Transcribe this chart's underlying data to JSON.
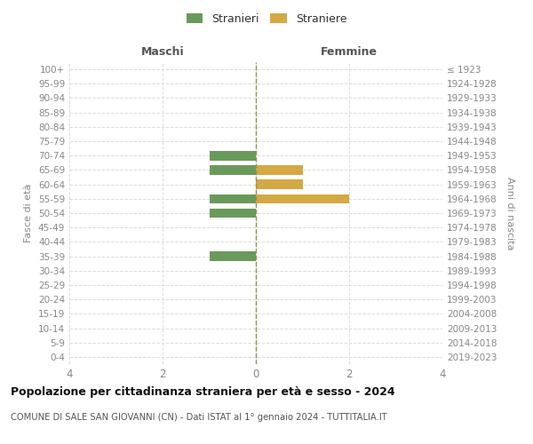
{
  "age_groups": [
    "100+",
    "95-99",
    "90-94",
    "85-89",
    "80-84",
    "75-79",
    "70-74",
    "65-69",
    "60-64",
    "55-59",
    "50-54",
    "45-49",
    "40-44",
    "35-39",
    "30-34",
    "25-29",
    "20-24",
    "15-19",
    "10-14",
    "5-9",
    "0-4"
  ],
  "birth_years": [
    "≤ 1923",
    "1924-1928",
    "1929-1933",
    "1934-1938",
    "1939-1943",
    "1944-1948",
    "1949-1953",
    "1954-1958",
    "1959-1963",
    "1964-1968",
    "1969-1973",
    "1974-1978",
    "1979-1983",
    "1984-1988",
    "1989-1993",
    "1994-1998",
    "1999-2003",
    "2004-2008",
    "2009-2013",
    "2014-2018",
    "2019-2023"
  ],
  "maschi": [
    0,
    0,
    0,
    0,
    0,
    0,
    1,
    1,
    0,
    1,
    1,
    0,
    0,
    1,
    0,
    0,
    0,
    0,
    0,
    0,
    0
  ],
  "femmine": [
    0,
    0,
    0,
    0,
    0,
    0,
    0,
    1,
    1,
    2,
    0,
    0,
    0,
    0,
    0,
    0,
    0,
    0,
    0,
    0,
    0
  ],
  "color_maschi": "#6a9a5b",
  "color_femmine": "#d4a843",
  "title": "Popolazione per cittadinanza straniera per età e sesso - 2024",
  "subtitle": "COMUNE DI SALE SAN GIOVANNI (CN) - Dati ISTAT al 1° gennaio 2024 - TUTTITALIA.IT",
  "header_left": "Maschi",
  "header_right": "Femmine",
  "ylabel_left": "Fasce di età",
  "ylabel_right": "Anni di nascita",
  "legend_stranieri": "Stranieri",
  "legend_straniere": "Straniere",
  "xlim": 4,
  "background_color": "#ffffff",
  "grid_color": "#dddddd",
  "center_line_color": "#909050"
}
